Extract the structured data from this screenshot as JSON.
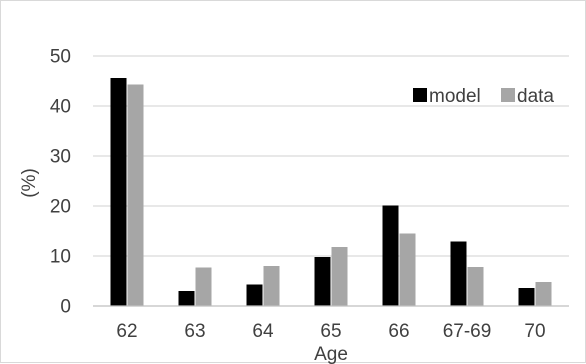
{
  "chart_data": {
    "type": "bar",
    "title": "",
    "xlabel": "Age",
    "ylabel": "(%)",
    "categories": [
      "62",
      "63",
      "64",
      "65",
      "66",
      "67-69",
      "70"
    ],
    "series": [
      {
        "name": "model",
        "color": "#000000",
        "values": [
          45.6,
          3.0,
          4.3,
          9.8,
          20.1,
          12.9,
          3.6
        ]
      },
      {
        "name": "data",
        "color": "#a6a6a6",
        "values": [
          44.3,
          7.7,
          8.0,
          11.8,
          14.5,
          7.8,
          4.8
        ]
      }
    ],
    "ylim": [
      0,
      50
    ],
    "yticks": [
      "0",
      "10",
      "20",
      "30",
      "40",
      "50"
    ],
    "grid": true,
    "legend_position": "top-right",
    "gridline_color": "#d9d9d9",
    "axis_color": "#bfbfbf"
  }
}
